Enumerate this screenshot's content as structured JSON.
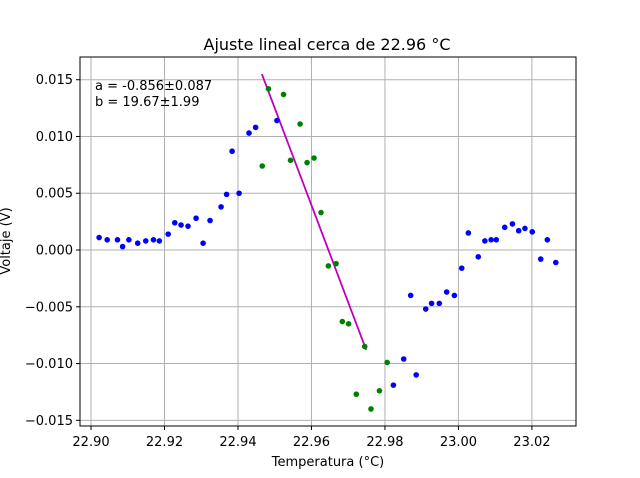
{
  "chart_data": {
    "type": "scatter",
    "title": "Ajuste lineal cerca de 22.96 °C",
    "xlabel": "Temperatura (°C)",
    "ylabel": "Voltaje (V)",
    "xlim": [
      22.897,
      23.032
    ],
    "ylim": [
      -0.0155,
      0.017
    ],
    "xticks": [
      22.9,
      22.92,
      22.94,
      22.96,
      22.98,
      23.0,
      23.02
    ],
    "xtick_labels": [
      "22.90",
      "22.92",
      "22.94",
      "22.96",
      "22.98",
      "23.00",
      "23.02"
    ],
    "yticks": [
      -0.015,
      -0.01,
      -0.005,
      0.0,
      0.005,
      0.01,
      0.015
    ],
    "ytick_labels": [
      "−0.015",
      "−0.010",
      "−0.005",
      "0.000",
      "0.005",
      "0.010",
      "0.015"
    ],
    "grid": true,
    "annotations": [
      "a = -0.856±0.087",
      "b = 19.67±1.99"
    ],
    "series": [
      {
        "color": "#0000ff",
        "marker": "circle",
        "points": [
          [
            22.9022,
            0.0011
          ],
          [
            22.9044,
            0.0009
          ],
          [
            22.9072,
            0.0009
          ],
          [
            22.9086,
            0.0003
          ],
          [
            22.9103,
            0.0009
          ],
          [
            22.9127,
            0.0006
          ],
          [
            22.9149,
            0.0008
          ],
          [
            22.917,
            0.0009
          ],
          [
            22.9186,
            0.0008
          ],
          [
            22.921,
            0.0014
          ],
          [
            22.9228,
            0.0024
          ],
          [
            22.9245,
            0.0022
          ],
          [
            22.9264,
            0.0021
          ],
          [
            22.9286,
            0.0028
          ],
          [
            22.9305,
            0.0006
          ],
          [
            22.9324,
            0.0026
          ],
          [
            22.9354,
            0.0038
          ],
          [
            22.9369,
            0.0049
          ],
          [
            22.9384,
            0.0087
          ],
          [
            22.9403,
            0.005
          ],
          [
            22.943,
            0.0103
          ],
          [
            22.9448,
            0.0108
          ],
          [
            22.9506,
            0.0114
          ],
          [
            22.9823,
            -0.0119
          ],
          [
            22.9851,
            -0.0096
          ],
          [
            22.987,
            -0.004
          ],
          [
            22.9885,
            -0.011
          ],
          [
            22.9911,
            -0.0052
          ],
          [
            22.9927,
            -0.0047
          ],
          [
            22.9948,
            -0.0047
          ],
          [
            22.9968,
            -0.0037
          ],
          [
            22.9989,
            -0.004
          ],
          [
            23.0009,
            -0.0016
          ],
          [
            23.0027,
            0.0015
          ],
          [
            23.0054,
            -0.0006
          ],
          [
            23.0072,
            0.0008
          ],
          [
            23.0089,
            0.0009
          ],
          [
            23.0103,
            0.0009
          ],
          [
            23.0126,
            0.002
          ],
          [
            23.0147,
            0.0023
          ],
          [
            23.0164,
            0.0017
          ],
          [
            23.0181,
            0.0019
          ],
          [
            23.0201,
            0.0016
          ],
          [
            23.0224,
            -0.0008
          ],
          [
            23.0242,
            0.0009
          ],
          [
            23.0265,
            -0.0011
          ]
        ]
      },
      {
        "color": "#008000",
        "marker": "circle",
        "points": [
          [
            22.9466,
            0.0074
          ],
          [
            22.9483,
            0.0142
          ],
          [
            22.9524,
            0.0137
          ],
          [
            22.9543,
            0.0079
          ],
          [
            22.9569,
            0.0111
          ],
          [
            22.9588,
            0.0077
          ],
          [
            22.9607,
            0.0081
          ],
          [
            22.9626,
            0.0033
          ],
          [
            22.9646,
            -0.0014
          ],
          [
            22.9667,
            -0.0012
          ],
          [
            22.9684,
            -0.0063
          ],
          [
            22.9701,
            -0.0065
          ],
          [
            22.9722,
            -0.0127
          ],
          [
            22.9745,
            -0.0085
          ],
          [
            22.9762,
            -0.014
          ],
          [
            22.9785,
            -0.0124
          ],
          [
            22.9806,
            -0.0099
          ]
        ]
      }
    ],
    "fit_line": {
      "color": "#bf00bf",
      "points": [
        [
          22.9465,
          0.0155
        ],
        [
          22.9749,
          -0.0088
        ]
      ]
    }
  }
}
